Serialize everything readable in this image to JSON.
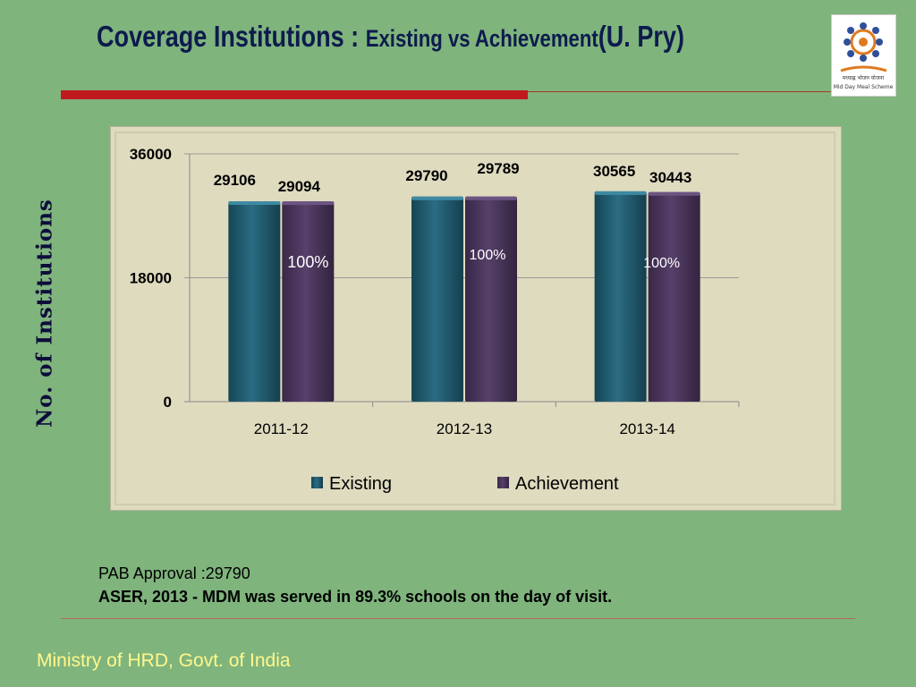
{
  "slide": {
    "title_main": "Coverage Institutions : ",
    "title_sub": "Existing vs Achievement",
    "title_tail": "(U. Pry)",
    "notes_line1": "PAB Approval :29790",
    "notes_line2": "ASER, 2013 -  MDM was served in 89.3% schools on the day of visit.",
    "footer": "Ministry of HRD, Govt. of India",
    "logo_icon": "mid-day-meal-scheme-logo",
    "logo_caption_hindi": "मध्याह्न भोजन योजना",
    "logo_caption": "Mid Day Meal Scheme"
  },
  "colors": {
    "background": "#7fb47d",
    "existing": "#1f5a6e",
    "achievement": "#4a3458",
    "title": "#0e1b4d",
    "footer": "#fff88a",
    "percent": "#ffffff"
  },
  "chart_data": {
    "type": "bar",
    "categories": [
      "2011-12",
      "2012-13",
      "2013-14"
    ],
    "series": [
      {
        "name": "Existing",
        "values": [
          29106,
          29790,
          30565
        ]
      },
      {
        "name": "Achievement",
        "values": [
          29094,
          29789,
          30443
        ]
      }
    ],
    "value_labels": {
      "Existing": [
        "29106",
        "29790",
        "30565"
      ],
      "Achievement": [
        "29094",
        "29789",
        "30443"
      ]
    },
    "annotations": [
      "100%",
      "100%",
      "100%"
    ],
    "ylabel": "No. of Institutions",
    "xlabel": "",
    "yticks": [
      0,
      18000,
      36000
    ],
    "ylim": [
      0,
      36000
    ],
    "grid": true,
    "legend": "bottom"
  }
}
